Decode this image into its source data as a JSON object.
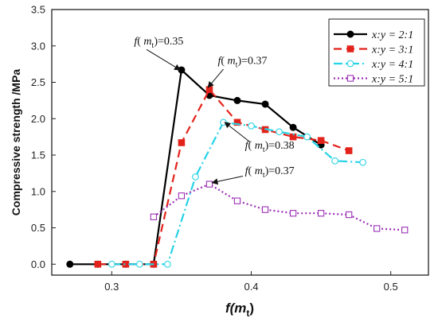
{
  "chart_data": {
    "type": "line",
    "xlabel": "f(m",
    "xlabel_sub": "t",
    "xlabel_close": ")",
    "ylabel": "Compressive strength /MPa",
    "xlim": [
      0.257,
      0.527
    ],
    "ylim": [
      -0.15,
      3.5
    ],
    "xticks": [
      0.3,
      0.4,
      0.5
    ],
    "xtick_labels": [
      "0.3",
      "0.4",
      "0.5"
    ],
    "yticks": [
      0.0,
      0.5,
      1.0,
      1.5,
      2.0,
      2.5,
      3.0,
      3.5
    ],
    "ytick_labels": [
      "0.0",
      "0.5",
      "1.0",
      "1.5",
      "2.0",
      "2.5",
      "3.0",
      "3.5"
    ],
    "grid": false,
    "legend_position": "top-right",
    "series": [
      {
        "name": "x:y = 2:1",
        "color": "#000000",
        "marker": "circle-filled",
        "line": "solid",
        "points": [
          [
            0.27,
            0.0
          ],
          [
            0.29,
            0.0
          ],
          [
            0.31,
            0.0
          ],
          [
            0.33,
            0.0
          ],
          [
            0.35,
            2.67
          ],
          [
            0.37,
            2.32
          ],
          [
            0.39,
            2.25
          ],
          [
            0.41,
            2.2
          ],
          [
            0.43,
            1.88
          ],
          [
            0.45,
            1.64
          ]
        ]
      },
      {
        "name": "x:y = 3:1",
        "color": "#e3231b",
        "marker": "square-filled",
        "line": "dashed",
        "points": [
          [
            0.29,
            0.0
          ],
          [
            0.31,
            0.0
          ],
          [
            0.33,
            0.0
          ],
          [
            0.35,
            1.67
          ],
          [
            0.37,
            2.4
          ],
          [
            0.39,
            1.95
          ],
          [
            0.41,
            1.85
          ],
          [
            0.43,
            1.75
          ],
          [
            0.45,
            1.7
          ],
          [
            0.47,
            1.56
          ]
        ]
      },
      {
        "name": "x:y = 4:1",
        "color": "#27d3e6",
        "marker": "circle-open",
        "line": "dashdot",
        "points": [
          [
            0.3,
            0.0
          ],
          [
            0.32,
            0.0
          ],
          [
            0.34,
            0.0
          ],
          [
            0.36,
            1.2
          ],
          [
            0.38,
            1.95
          ],
          [
            0.4,
            1.9
          ],
          [
            0.42,
            1.82
          ],
          [
            0.44,
            1.75
          ],
          [
            0.46,
            1.42
          ],
          [
            0.48,
            1.4
          ]
        ]
      },
      {
        "name": "x:y = 5:1",
        "color": "#9b2fb5",
        "marker": "square-open",
        "line": "dotted",
        "points": [
          [
            0.33,
            0.65
          ],
          [
            0.35,
            0.94
          ],
          [
            0.37,
            1.1
          ],
          [
            0.39,
            0.87
          ],
          [
            0.41,
            0.75
          ],
          [
            0.43,
            0.7
          ],
          [
            0.45,
            0.7
          ],
          [
            0.47,
            0.68
          ],
          [
            0.49,
            0.49
          ],
          [
            0.51,
            0.47
          ]
        ]
      }
    ],
    "annotations": [
      {
        "prefix": "f(",
        "var": "m",
        "sub": "t",
        "suffix": ")=0.35",
        "text_x": 0.316,
        "text_y": 3.02,
        "arrow_to": [
          0.349,
          2.67
        ],
        "arrow_from": [
          0.325,
          2.95
        ]
      },
      {
        "prefix": "f(",
        "var": "m",
        "sub": "t",
        "suffix": ")=0.37",
        "text_x": 0.376,
        "text_y": 2.75,
        "arrow_to": [
          0.369,
          2.43
        ],
        "arrow_from": [
          0.38,
          2.68
        ]
      },
      {
        "prefix": "f(",
        "var": "m",
        "sub": "t",
        "suffix": ")=0.38",
        "text_x": 0.3955,
        "text_y": 1.59,
        "arrow_to": [
          0.381,
          1.95
        ],
        "arrow_from": [
          0.399,
          1.68
        ]
      },
      {
        "prefix": "f(",
        "var": "m",
        "sub": "t",
        "suffix": ")=0.37",
        "text_x": 0.3955,
        "text_y": 1.24,
        "arrow_to": [
          0.372,
          1.12
        ],
        "arrow_from": [
          0.394,
          1.21
        ]
      }
    ]
  }
}
